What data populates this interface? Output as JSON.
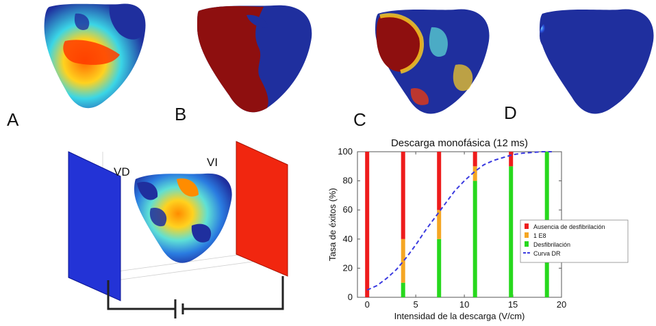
{
  "panels": {
    "a": "A",
    "b": "B",
    "c": "C",
    "d": "D"
  },
  "setup": {
    "rv_label": "VD",
    "lv_label": "VI"
  },
  "colors": {
    "dark_blue": "#1f2f9e",
    "dark_red": "#8e0f0f",
    "electrode_blue": "#2333d6",
    "electrode_red": "#f1260f",
    "no_defib": "#ee1c1c",
    "one_e8": "#f5a623",
    "defib": "#27d81d",
    "dr_curve": "#3a3ae0"
  },
  "chart_data": {
    "type": "bar",
    "title": "Descarga monofásica (12 ms)",
    "xlabel": "Intensidad de la descarga (V/cm)",
    "ylabel": "Tasa de éxitos (%)",
    "xlim": [
      -1,
      20
    ],
    "ylim": [
      0,
      100
    ],
    "xticks": [
      0,
      5,
      10,
      15,
      20
    ],
    "yticks": [
      0,
      20,
      40,
      60,
      80,
      100
    ],
    "x": [
      0,
      3.7,
      7.4,
      11.1,
      14.8,
      18.5
    ],
    "series": [
      {
        "name": "Ausencia de desfibrilación",
        "values": [
          100,
          60,
          40,
          10,
          10,
          0
        ]
      },
      {
        "name": "1 E8",
        "values": [
          0,
          30,
          20,
          10,
          0,
          0
        ]
      },
      {
        "name": "Desfibrilación",
        "values": [
          0,
          10,
          40,
          80,
          90,
          100
        ]
      }
    ],
    "curve": {
      "name": "Curva DR",
      "x": [
        0,
        1,
        2,
        3,
        4,
        5,
        6,
        7,
        8,
        9,
        10,
        11,
        12,
        13,
        14,
        15,
        16,
        17,
        18,
        19
      ],
      "y": [
        5,
        8,
        13,
        19,
        27,
        36,
        46,
        55,
        64,
        73,
        80,
        86,
        91,
        94,
        96,
        98,
        99,
        99.5,
        100,
        100
      ]
    },
    "legend_position": "right"
  }
}
